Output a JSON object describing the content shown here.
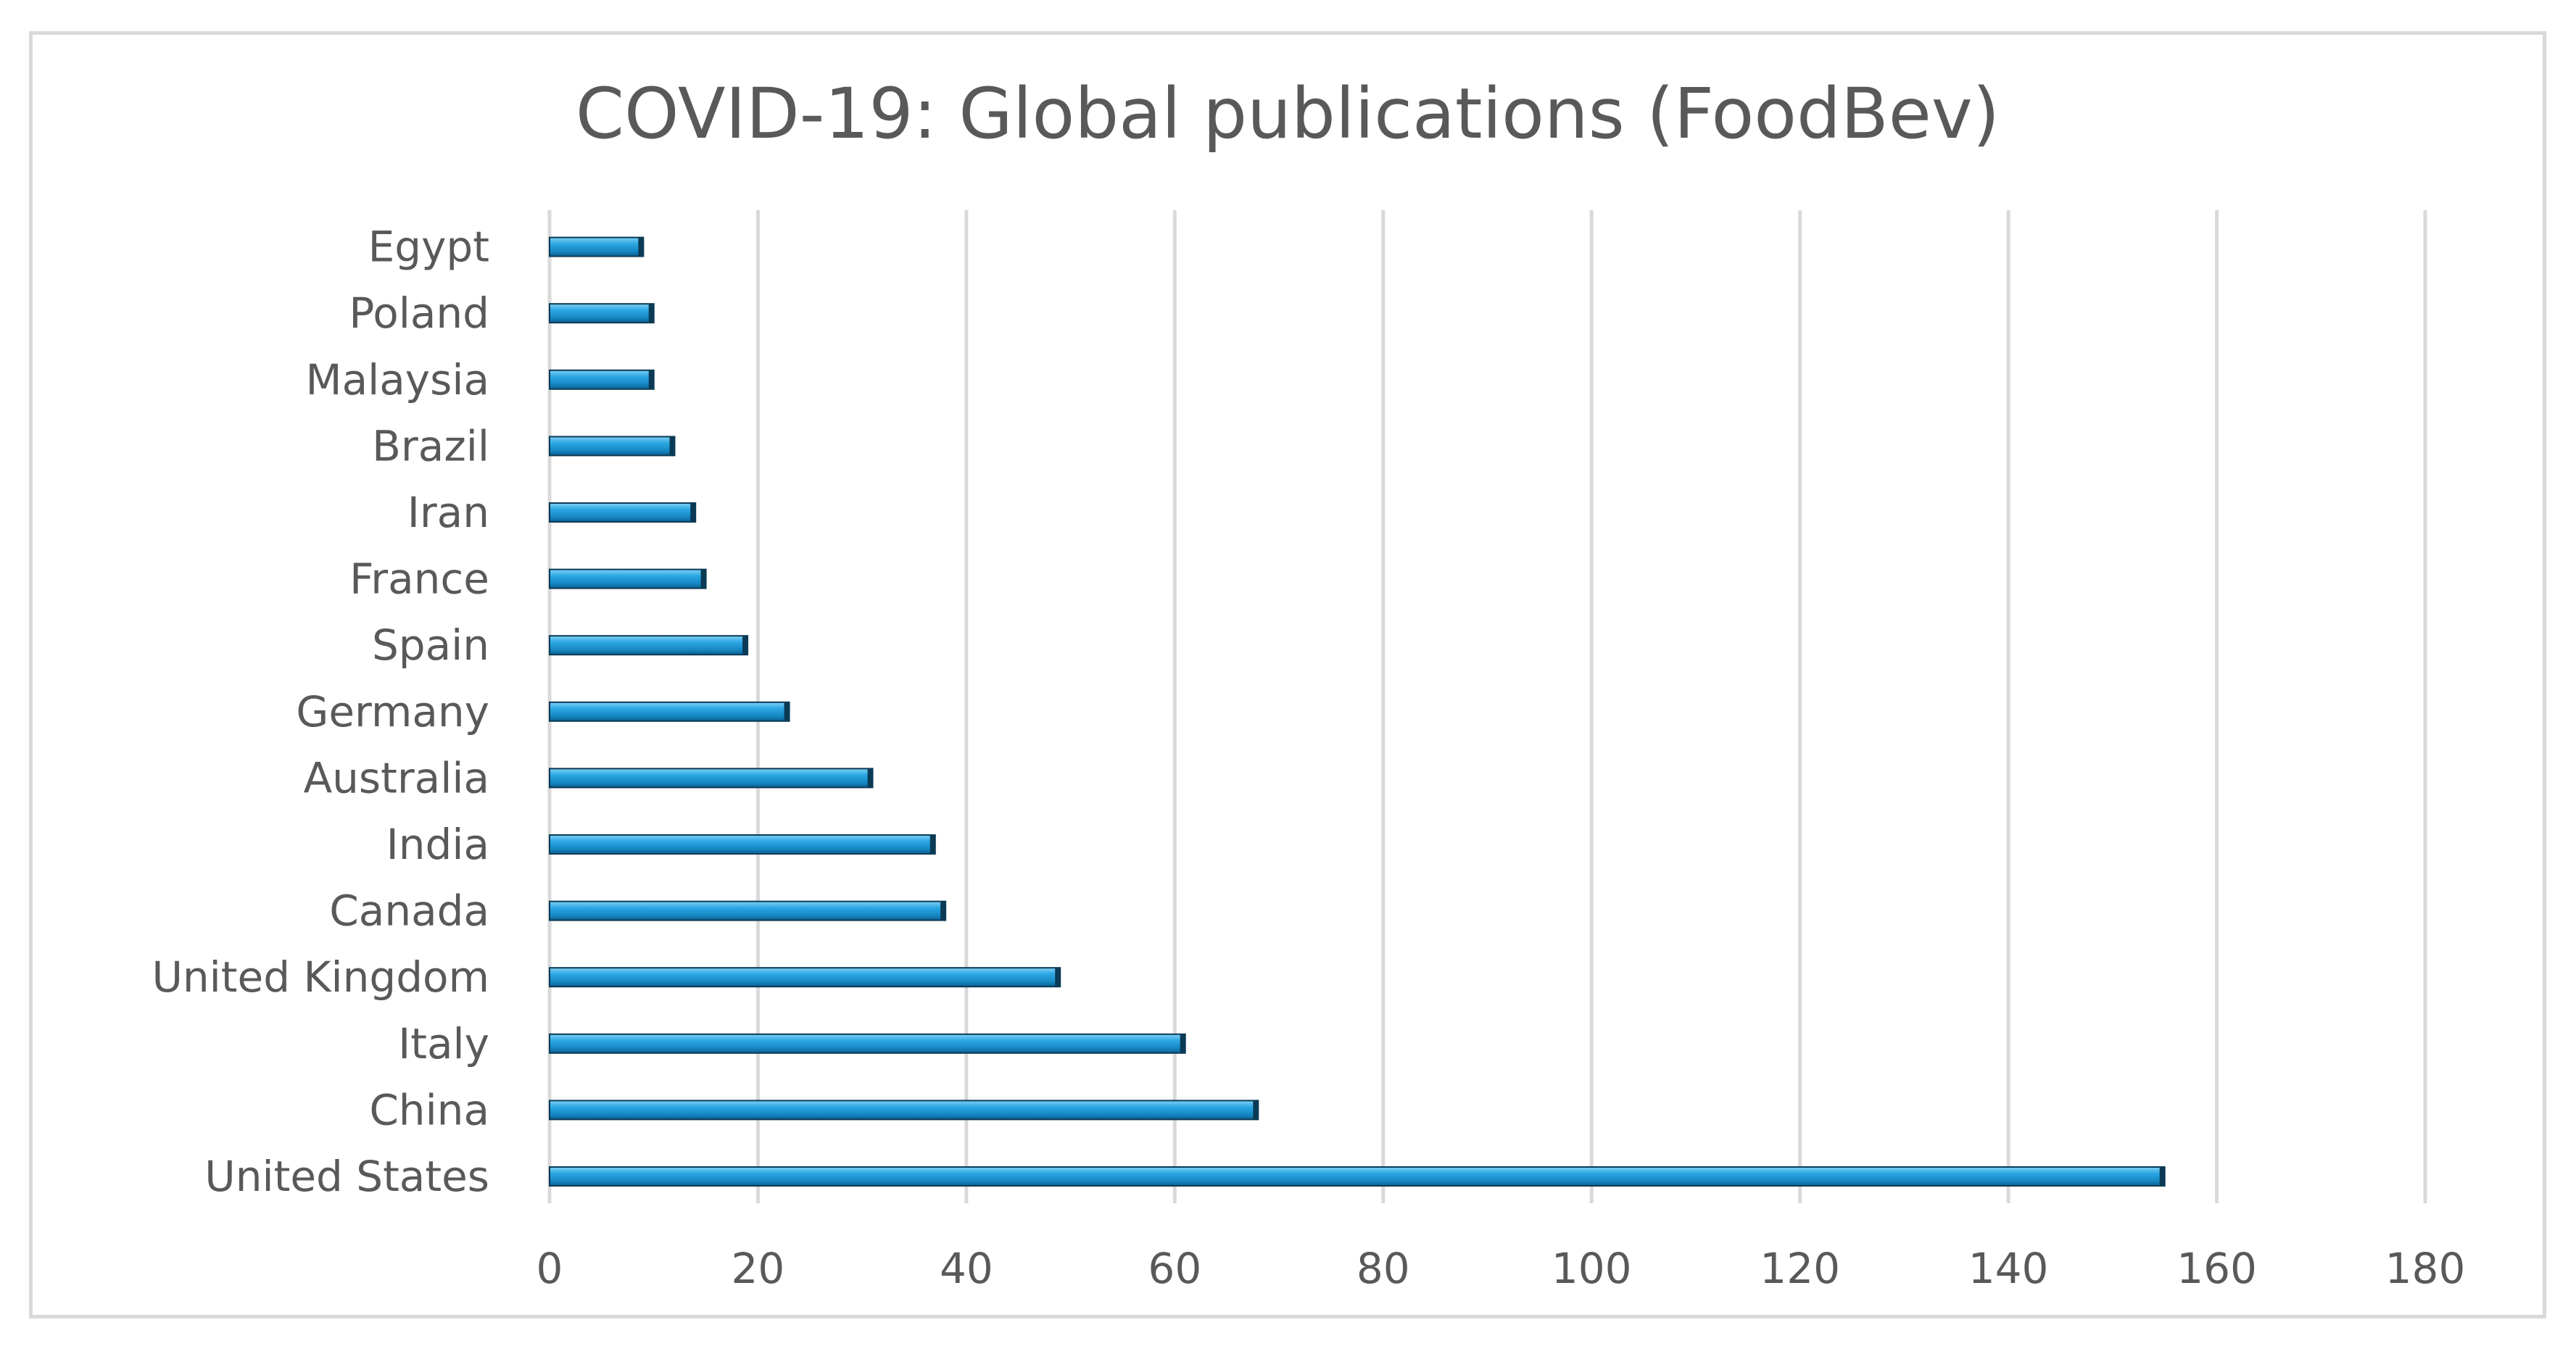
{
  "chart_data": {
    "type": "bar",
    "orientation": "horizontal",
    "title": "COVID-19: Global publications (FoodBev)",
    "categories": [
      "United States",
      "China",
      "Italy",
      "United Kingdom",
      "Canada",
      "India",
      "Australia",
      "Germany",
      "Spain",
      "France",
      "Iran",
      "Brazil",
      "Malaysia",
      "Poland",
      "Egypt"
    ],
    "values": [
      155,
      68,
      61,
      49,
      38,
      37,
      31,
      23,
      19,
      15,
      14,
      12,
      10,
      10,
      9
    ],
    "xlim": [
      0,
      180
    ],
    "xticks": [
      0,
      20,
      40,
      60,
      80,
      100,
      120,
      140,
      160,
      180
    ],
    "xlabel": "",
    "ylabel": "",
    "grid": "vertical",
    "legend": "none",
    "bar_color": "#1f9bd7",
    "bar_edge_color": "#0b3a55",
    "grid_color": "#d9d9d9",
    "text_color": "#595959"
  }
}
